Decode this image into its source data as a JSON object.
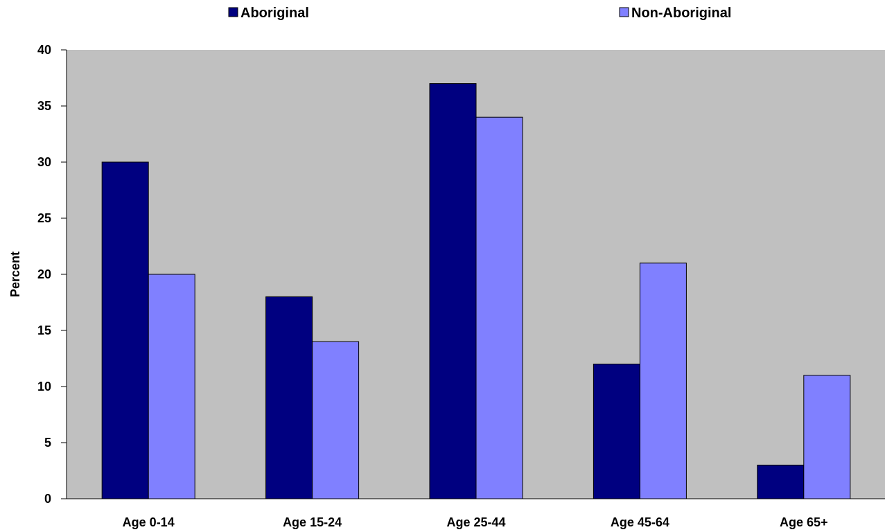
{
  "chart_data": {
    "type": "bar",
    "title": "",
    "xlabel": "",
    "ylabel": "Percent",
    "ylim": [
      0,
      40
    ],
    "yticks": [
      0,
      5,
      10,
      15,
      20,
      25,
      30,
      35,
      40
    ],
    "categories": [
      "Age 0-14",
      "Age 15-24",
      "Age 25-44",
      "Age 45-64",
      "Age 65+"
    ],
    "series": [
      {
        "name": "Aboriginal",
        "values": [
          30,
          18,
          37,
          12,
          3
        ],
        "color": "#000080"
      },
      {
        "name": "Non-Aboriginal",
        "values": [
          20,
          14,
          34,
          21,
          11
        ],
        "color": "#8080ff"
      }
    ],
    "plot_background": "#c0c0c0",
    "grid": false,
    "legend_position": "top"
  }
}
